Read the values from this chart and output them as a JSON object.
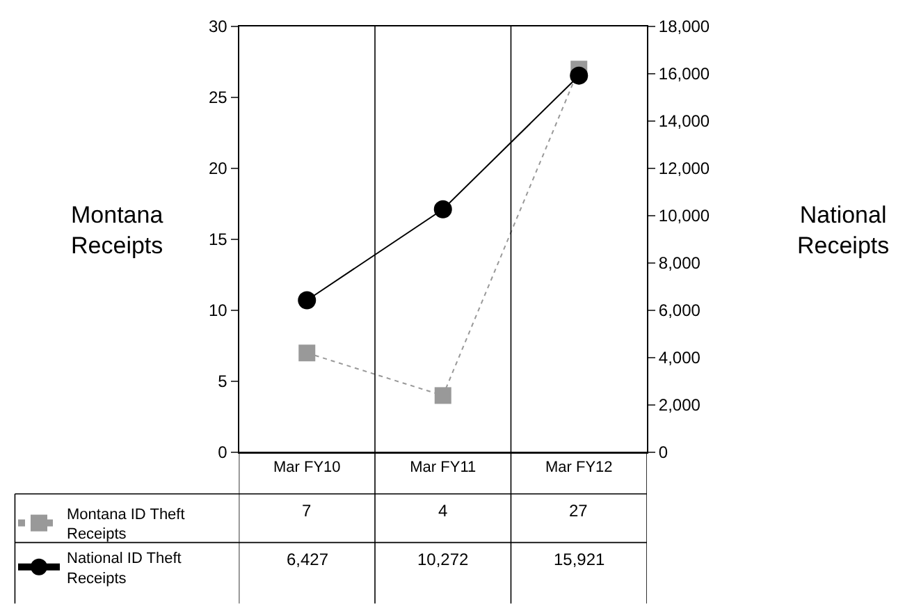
{
  "chart_data": {
    "type": "line",
    "categories": [
      "Mar FY10",
      "Mar FY11",
      "Mar FY12"
    ],
    "ylabel": "Montana Receipts",
    "y2label": "National Receipts",
    "ylim": [
      0,
      30
    ],
    "yticks": [
      0,
      5,
      10,
      15,
      20,
      25,
      30
    ],
    "y2lim": [
      0,
      18000
    ],
    "y2ticks": [
      {
        "value": 0,
        "label": "0"
      },
      {
        "value": 2000,
        "label": "2,000"
      },
      {
        "value": 4000,
        "label": "4,000"
      },
      {
        "value": 6000,
        "label": "6,000"
      },
      {
        "value": 8000,
        "label": "8,000"
      },
      {
        "value": 10000,
        "label": "10,000"
      },
      {
        "value": 12000,
        "label": "12,000"
      },
      {
        "value": 14000,
        "label": "14,000"
      },
      {
        "value": 16000,
        "label": "16,000"
      },
      {
        "value": 18000,
        "label": "18,000"
      }
    ],
    "series": [
      {
        "name": "Montana ID Theft Receipts",
        "color": "#999999",
        "values": [
          7,
          4,
          27
        ],
        "value_labels": [
          "7",
          "4",
          "27"
        ],
        "marker": "square",
        "line_style": "dotted"
      },
      {
        "name": "National ID Theft Receipts",
        "color": "#000000",
        "values": [
          6427,
          10272,
          15921
        ],
        "value_labels": [
          "6,427",
          "10,272",
          "15,921"
        ],
        "axis": "y2",
        "marker": "circle",
        "line_style": "solid"
      }
    ],
    "legend": "bottom left"
  }
}
